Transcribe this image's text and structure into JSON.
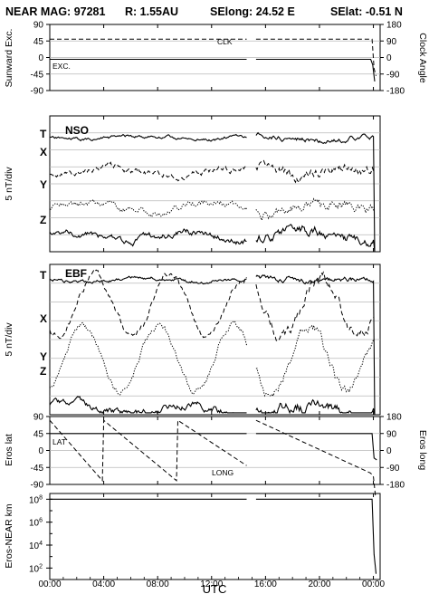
{
  "title": {
    "prefix": "NEAR MAG: 97281",
    "r": "R: 1.55AU",
    "selong": "SElong:   24.52 E",
    "selat": "SElat:   -0.51 N"
  },
  "colors": {
    "ink": "#000000",
    "grid": "#b9b9b9"
  },
  "chart_data": [
    {
      "type": "line",
      "panel": "sunward",
      "ylabel": "Sunward Exc.",
      "ylabel_right": "Clock Angle",
      "yticks_left": [
        "90",
        "45",
        "0",
        "-45",
        "-90"
      ],
      "yticks_right": [
        "180",
        "90",
        "0",
        "-90",
        "-180"
      ],
      "ylim": [
        -90,
        90
      ],
      "series": [
        {
          "name": "CLK",
          "style": "dashed",
          "points": [
            [
              0,
              50
            ],
            [
              14.6,
              50
            ],
            [
              15.3,
              50
            ],
            [
              23.9,
              50
            ],
            [
              24.05,
              -30
            ],
            [
              24.2,
              -50
            ]
          ]
        },
        {
          "name": "EXC.",
          "style": "solid",
          "points": [
            [
              0,
              -5
            ],
            [
              14.6,
              -5
            ],
            [
              15.3,
              -5
            ],
            [
              23.8,
              -5
            ],
            [
              23.95,
              -20
            ],
            [
              24.1,
              -65
            ]
          ]
        }
      ]
    },
    {
      "type": "line",
      "panel": "nso",
      "label": "NSO",
      "ylabel": "5 nT/div",
      "components": [
        "T",
        "X",
        "Y",
        "Z"
      ],
      "series": [
        {
          "name": "T",
          "style": "solid",
          "base": 1.3,
          "amp": 0.18,
          "seed": 11
        },
        {
          "name": "X",
          "style": "dashed",
          "base": 3.3,
          "amp": 0.45,
          "seed": 23
        },
        {
          "name": "Y",
          "style": "dotted",
          "base": 5.4,
          "amp": 0.55,
          "seed": 37
        },
        {
          "name": "Z",
          "style": "solid",
          "base": 7.1,
          "amp": 0.6,
          "seed": 51
        }
      ]
    },
    {
      "type": "line",
      "panel": "ebf",
      "label": "EBF",
      "ylabel": "5 nT/div",
      "components": [
        "T",
        "X",
        "Y",
        "Z"
      ],
      "series": [
        {
          "name": "T",
          "style": "solid",
          "base": 0.8,
          "amp": 0.2,
          "seed": 61
        },
        {
          "name": "X",
          "style": "dashed",
          "base": 2.2,
          "amp": 1.6,
          "seed": 73,
          "period": 5.6
        },
        {
          "name": "Y",
          "style": "dotted",
          "base": 5.0,
          "amp": 1.8,
          "seed": 89,
          "period": 5.6
        },
        {
          "name": "Z",
          "style": "solid",
          "base": 7.7,
          "amp": 0.45,
          "seed": 97
        }
      ]
    },
    {
      "type": "line",
      "panel": "eros",
      "ylabel": "Eros lat",
      "ylabel_right": "Eros long",
      "yticks_left": [
        "90",
        "45",
        "0",
        "-45",
        "-90"
      ],
      "yticks_right": [
        "180",
        "90",
        "0",
        "-90",
        "-180"
      ],
      "ylim": [
        -90,
        90
      ],
      "series": [
        {
          "name": "LAT",
          "style": "solid",
          "points": [
            [
              0,
              45
            ],
            [
              14.6,
              45
            ],
            [
              15.3,
              45
            ],
            [
              23.9,
              45
            ],
            [
              24.05,
              -20
            ],
            [
              24.25,
              -25
            ]
          ]
        },
        {
          "name": "LONG",
          "style": "dashed",
          "points": [
            [
              0,
              80
            ],
            [
              3.9,
              -80
            ],
            [
              4.0,
              80
            ],
            [
              9.4,
              -80
            ],
            [
              9.5,
              80
            ],
            [
              14.6,
              -40
            ],
            [
              15.3,
              80
            ],
            [
              23.8,
              -60
            ],
            [
              24.0,
              -70
            ],
            [
              24.15,
              -120
            ]
          ]
        }
      ]
    },
    {
      "type": "line",
      "panel": "distance",
      "ylabel": "Eros-NEAR km",
      "ylog": true,
      "yticks": [
        "10^8",
        "10^6",
        "10^4",
        "10^2"
      ],
      "ylim_exp": [
        1,
        8.5
      ],
      "series": [
        {
          "name": "",
          "style": "solid",
          "points": [
            [
              0,
              8
            ],
            [
              14.6,
              8
            ],
            [
              15.3,
              8
            ],
            [
              23.9,
              8
            ],
            [
              24.05,
              3.2
            ],
            [
              24.2,
              1.5
            ]
          ]
        }
      ]
    }
  ],
  "xaxis": {
    "label": "UTC",
    "ticks": [
      "00:00",
      "04:00",
      "08:00",
      "12:00",
      "16:00",
      "20:00",
      "00:00"
    ],
    "range_hours": [
      0,
      24.5
    ]
  },
  "annotations": {
    "clk": "CLK",
    "exc": "EXC.",
    "lat": "LAT",
    "long": "LONG"
  }
}
